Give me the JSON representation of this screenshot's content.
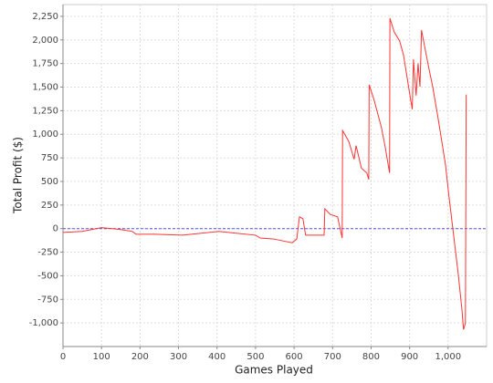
{
  "chart_data": {
    "type": "line",
    "x_label": "Games Played",
    "y_label": "Total Profit ($)",
    "x": [
      0,
      50,
      100,
      150,
      180,
      190,
      240,
      310,
      405,
      500,
      512,
      547,
      595,
      607,
      614,
      623,
      630,
      678,
      680,
      694,
      713,
      725,
      726,
      742,
      756,
      761,
      775,
      789,
      794,
      795,
      808,
      827,
      836,
      848,
      849,
      860,
      874,
      884,
      903,
      907,
      910,
      917,
      922,
      927,
      931,
      941,
      950,
      960,
      974,
      993,
      1002,
      1012,
      1026,
      1036,
      1040,
      1045,
      1047
    ],
    "series": [
      {
        "color": "#ff3333",
        "values": [
          -40,
          -30,
          10,
          -10,
          -30,
          -60,
          -60,
          -70,
          -30,
          -70,
          -100,
          -110,
          -150,
          -110,
          125,
          105,
          -70,
          -70,
          210,
          150,
          125,
          -100,
          1040,
          925,
          735,
          880,
          640,
          590,
          520,
          1525,
          1360,
          1070,
          880,
          590,
          2230,
          2085,
          1990,
          1845,
          1360,
          1265,
          1795,
          1410,
          1750,
          1505,
          2105,
          1890,
          1700,
          1505,
          1170,
          685,
          350,
          10,
          -470,
          -860,
          -1070,
          -1000,
          1420
        ]
      }
    ],
    "xlim": [
      0,
      1100
    ],
    "xticks": [
      0,
      100,
      200,
      300,
      400,
      500,
      600,
      700,
      800,
      900,
      {
        "value": 1000,
        "label": "1,000"
      }
    ],
    "ylim": [
      -1250,
      2375
    ],
    "yticks": [
      {
        "value": -1000,
        "label": "-1,000"
      },
      -750,
      -500,
      -250,
      0,
      250,
      500,
      750,
      {
        "value": 1000,
        "label": "1,000"
      },
      {
        "value": 1250,
        "label": "1,250"
      },
      {
        "value": 1500,
        "label": "1,500"
      },
      {
        "value": 1750,
        "label": "1,750"
      },
      {
        "value": 2000,
        "label": "2,000"
      },
      {
        "value": 2250,
        "label": "2,250"
      }
    ],
    "grid": true,
    "reference_line": {
      "value": 0,
      "color": "#5555dd"
    }
  }
}
